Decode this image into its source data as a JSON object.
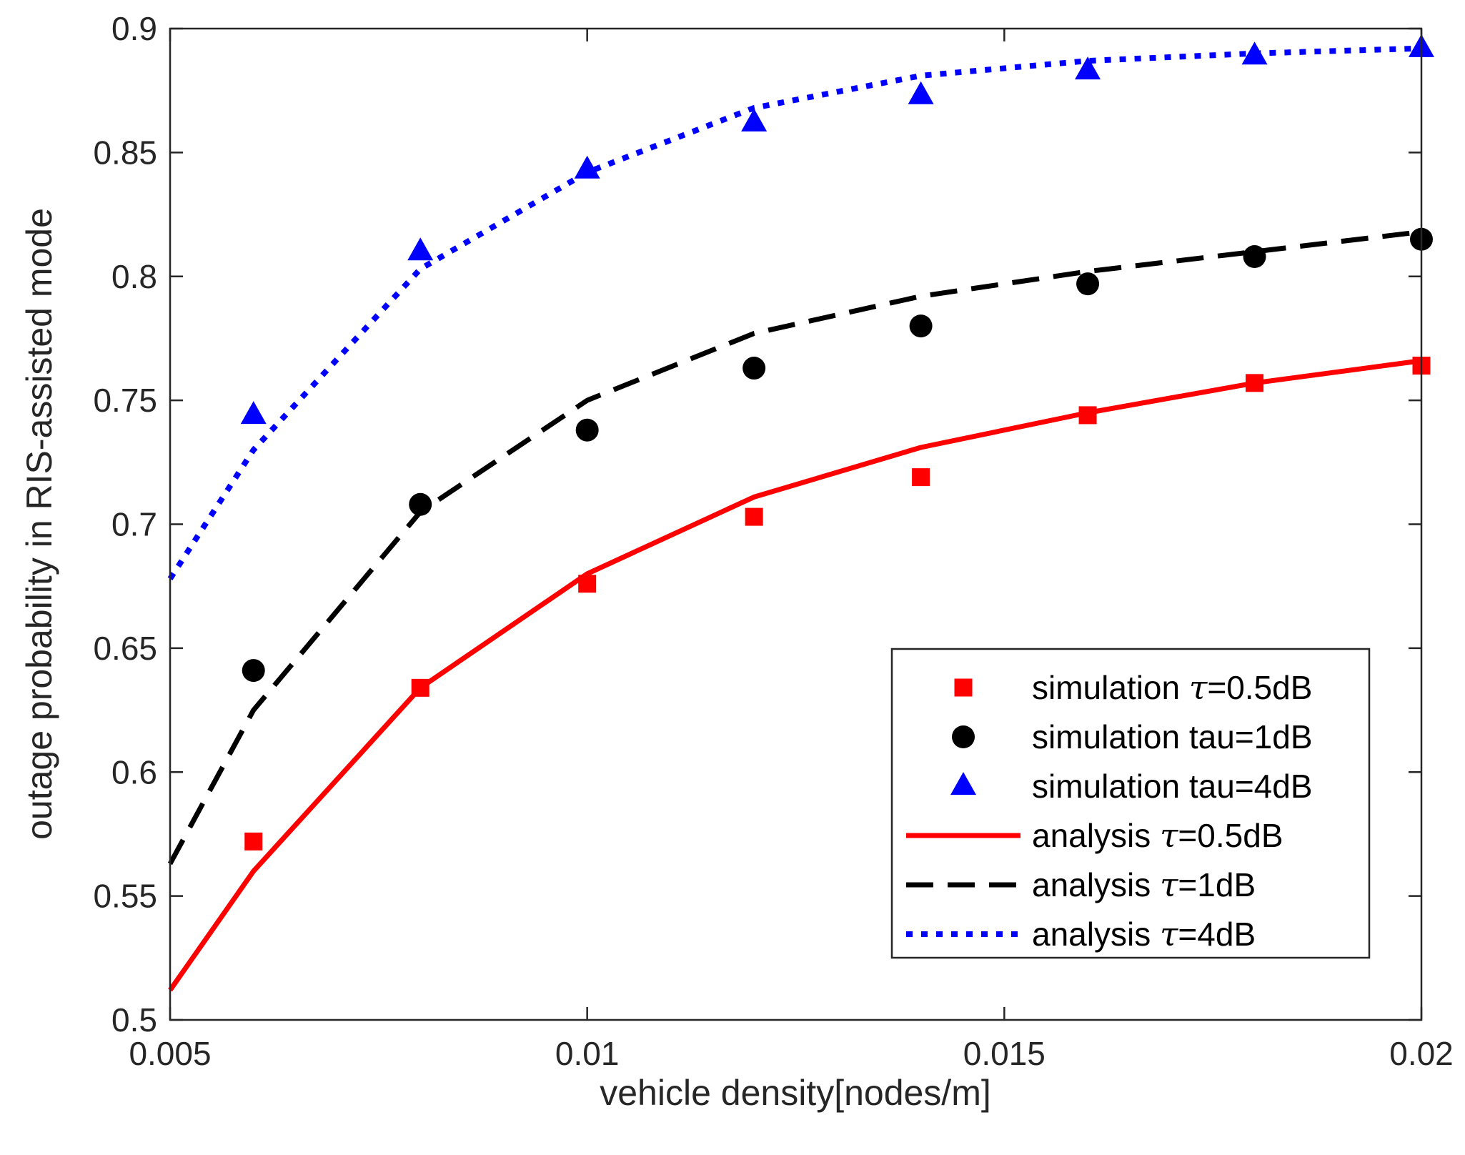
{
  "chart_data": {
    "type": "line",
    "title": "",
    "xlabel": "vehicle density[nodes/m]",
    "ylabel": "outage probability in RIS-assisted mode",
    "xlim": [
      0.005,
      0.02
    ],
    "ylim": [
      0.5,
      0.9
    ],
    "grid": false,
    "legend_position": "bottom-right",
    "x_ticks": [
      {
        "value": 0.005,
        "label": "0.005"
      },
      {
        "value": 0.01,
        "label": "0.01"
      },
      {
        "value": 0.015,
        "label": "0.015"
      },
      {
        "value": 0.02,
        "label": "0.02"
      }
    ],
    "y_ticks": [
      {
        "value": 0.5,
        "label": "0.5"
      },
      {
        "value": 0.55,
        "label": "0.55"
      },
      {
        "value": 0.6,
        "label": "0.6"
      },
      {
        "value": 0.65,
        "label": "0.65"
      },
      {
        "value": 0.7,
        "label": "0.7"
      },
      {
        "value": 0.75,
        "label": "0.75"
      },
      {
        "value": 0.8,
        "label": "0.8"
      },
      {
        "value": 0.85,
        "label": "0.85"
      },
      {
        "value": 0.9,
        "label": "0.9"
      }
    ],
    "series": [
      {
        "id": "sim-05",
        "kind": "marker",
        "marker": "square",
        "color": "#ff0000",
        "legend_prefix": "simulation ",
        "legend_suffix": "=0.5dB",
        "legend_tau": true,
        "x": [
          0.006,
          0.008,
          0.01,
          0.012,
          0.014,
          0.016,
          0.018,
          0.02
        ],
        "y": [
          0.572,
          0.634,
          0.676,
          0.703,
          0.719,
          0.744,
          0.757,
          0.764
        ]
      },
      {
        "id": "sim-1",
        "kind": "marker",
        "marker": "circle",
        "color": "#000000",
        "legend_prefix": "simulation tau=1dB",
        "legend_suffix": "",
        "legend_tau": false,
        "x": [
          0.006,
          0.008,
          0.01,
          0.012,
          0.014,
          0.016,
          0.018,
          0.02
        ],
        "y": [
          0.641,
          0.708,
          0.738,
          0.763,
          0.78,
          0.797,
          0.808,
          0.815
        ]
      },
      {
        "id": "sim-4",
        "kind": "marker",
        "marker": "triangle",
        "color": "#0000ff",
        "legend_prefix": "simulation tau=4dB",
        "legend_suffix": "",
        "legend_tau": false,
        "x": [
          0.006,
          0.008,
          0.01,
          0.012,
          0.014,
          0.016,
          0.018,
          0.02
        ],
        "y": [
          0.744,
          0.81,
          0.843,
          0.862,
          0.873,
          0.883,
          0.889,
          0.892
        ]
      },
      {
        "id": "ana-05",
        "kind": "line",
        "dash": "solid",
        "color": "#ff0000",
        "legend_prefix": "analysis ",
        "legend_suffix": "=0.5dB",
        "legend_tau": true,
        "x": [
          0.005,
          0.006,
          0.008,
          0.01,
          0.012,
          0.014,
          0.016,
          0.018,
          0.02
        ],
        "y": [
          0.512,
          0.56,
          0.634,
          0.68,
          0.711,
          0.731,
          0.745,
          0.757,
          0.766
        ]
      },
      {
        "id": "ana-1",
        "kind": "line",
        "dash": "dashed",
        "color": "#000000",
        "legend_prefix": "analysis ",
        "legend_suffix": "=1dB",
        "legend_tau": true,
        "x": [
          0.005,
          0.006,
          0.008,
          0.01,
          0.012,
          0.014,
          0.016,
          0.018,
          0.02
        ],
        "y": [
          0.563,
          0.625,
          0.705,
          0.75,
          0.777,
          0.792,
          0.802,
          0.81,
          0.818
        ]
      },
      {
        "id": "ana-4",
        "kind": "line",
        "dash": "dotted",
        "color": "#0000ff",
        "legend_prefix": "analysis ",
        "legend_suffix": "=4dB",
        "legend_tau": true,
        "x": [
          0.005,
          0.006,
          0.008,
          0.01,
          0.012,
          0.014,
          0.016,
          0.018,
          0.02
        ],
        "y": [
          0.678,
          0.73,
          0.803,
          0.842,
          0.868,
          0.881,
          0.887,
          0.89,
          0.892
        ]
      }
    ],
    "tau_symbol": "τ"
  }
}
